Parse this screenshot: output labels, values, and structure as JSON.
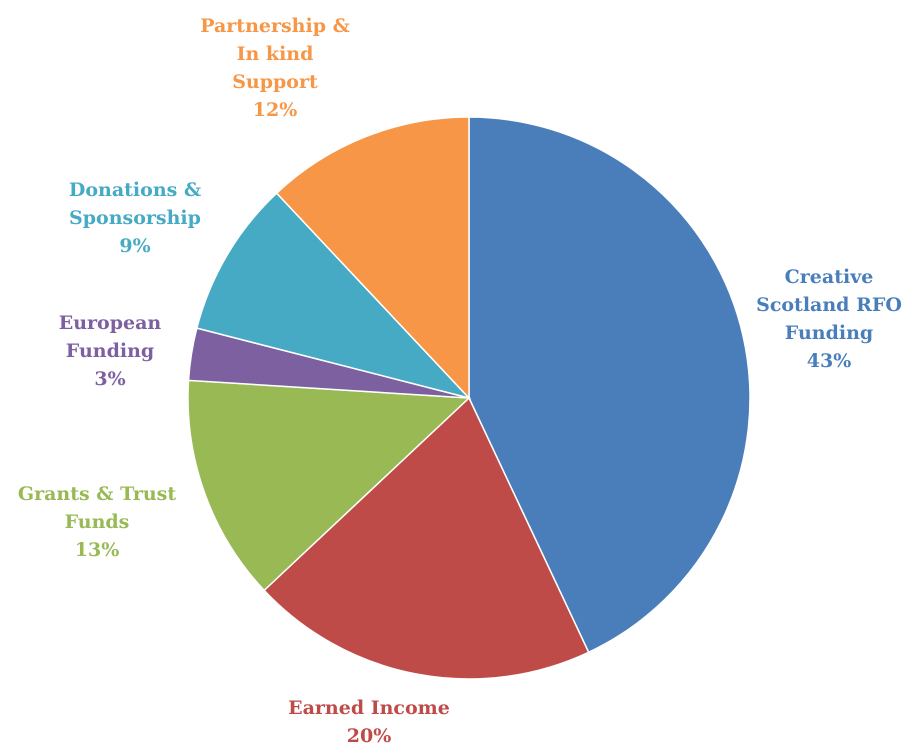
{
  "chart_data": {
    "type": "pie",
    "start_angle_deg": 0,
    "direction": "clockwise",
    "slices": [
      {
        "label_lines": [
          "Creative",
          "Scotland RFO",
          "Funding"
        ],
        "percent_label": "43%",
        "value": 43,
        "color": "#4a7ebb"
      },
      {
        "label_lines": [
          "Earned Income"
        ],
        "percent_label": "20%",
        "value": 20,
        "color": "#be4b48"
      },
      {
        "label_lines": [
          "Grants & Trust",
          "Funds"
        ],
        "percent_label": "13%",
        "value": 13,
        "color": "#98b954"
      },
      {
        "label_lines": [
          "European",
          "Funding"
        ],
        "percent_label": "3%",
        "value": 3,
        "color": "#7d60a0"
      },
      {
        "label_lines": [
          "Donations &",
          "Sponsorship"
        ],
        "percent_label": "9%",
        "value": 9,
        "color": "#46aac5"
      },
      {
        "label_lines": [
          "Partnership &",
          "In kind",
          "Support"
        ],
        "percent_label": "12%",
        "value": 12,
        "color": "#f79646"
      }
    ]
  }
}
